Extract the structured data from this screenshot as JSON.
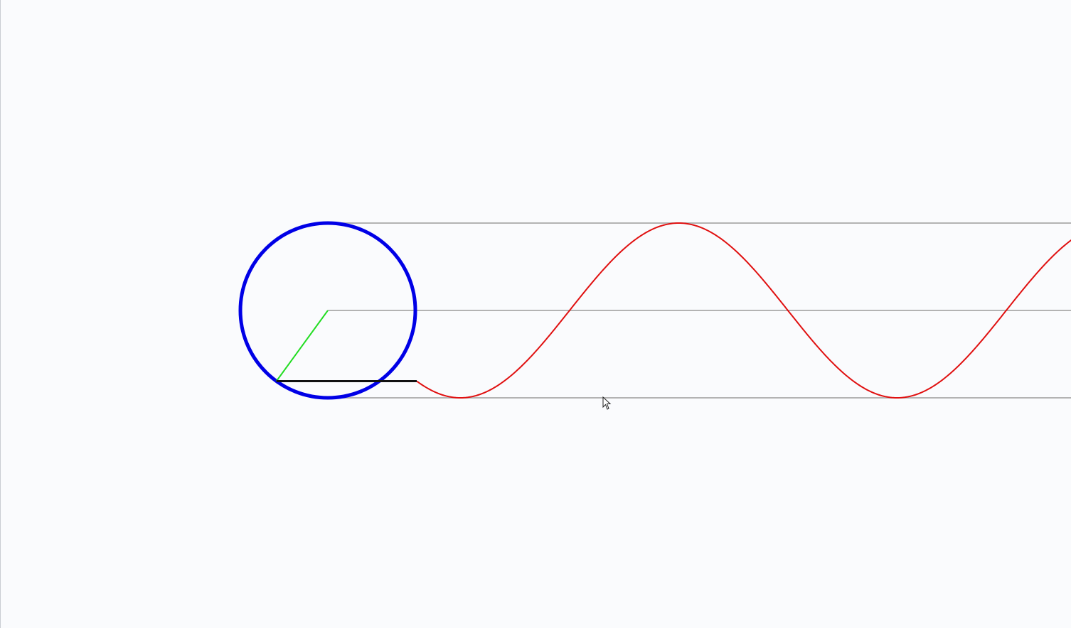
{
  "diagram": {
    "colors": {
      "background": "#fafbfd",
      "guide_lines": "#b3b3b3",
      "circle": "#0000e6",
      "radius": "#22dd22",
      "connector": "#111111",
      "sine_wave": "#e01010"
    },
    "angle_degrees": -126,
    "cycles_visible": 1.5
  },
  "cursor": {
    "icon": "arrow-pointer-icon"
  }
}
